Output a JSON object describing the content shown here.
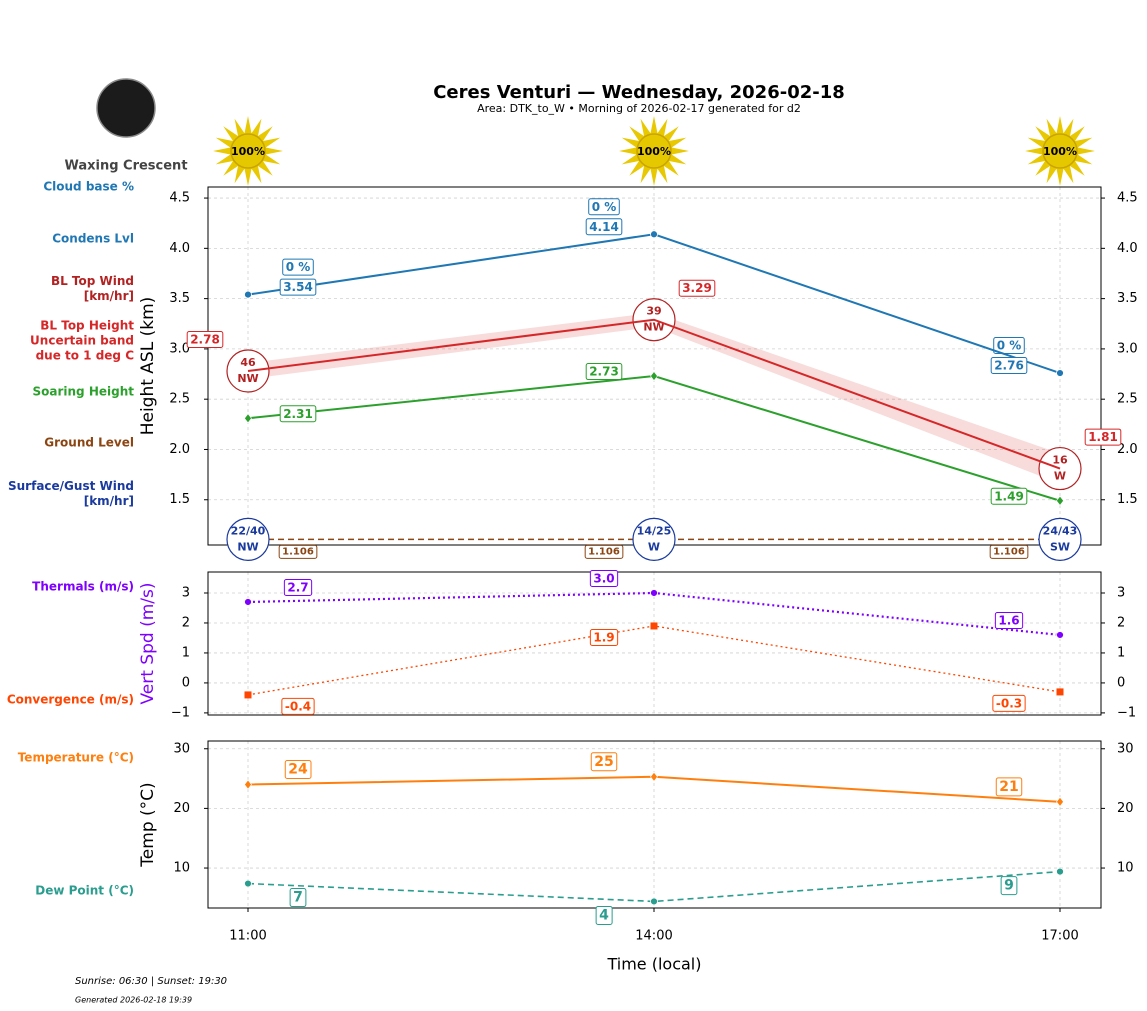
{
  "header": {
    "title": "Ceres Venturi — Wednesday, 2026-02-18",
    "subtitle": "Area: DTK_to_W • Morning of 2026-02-17 generated for d2",
    "moon_phase": "Waxing Crescent"
  },
  "sunshine": {
    "values": [
      100,
      100,
      100
    ],
    "value_labels": [
      "100%",
      "100%",
      "100%"
    ]
  },
  "footer": {
    "sun_times": "Sunrise: 06:30 | Sunset: 19:30",
    "generated": "Generated 2026-02-18 19:39"
  },
  "chart_data": [
    {
      "type": "line",
      "ylabel": "Height ASL (km)",
      "categories": [
        "11:00",
        "14:00",
        "17:00"
      ],
      "ylim": [
        1.05,
        4.61
      ],
      "yticks": [
        1.5,
        {
          "value": 2,
          "label": "2.0"
        },
        2.5,
        {
          "value": 3,
          "label": "3.0"
        },
        3.5,
        {
          "value": 4,
          "label": "4.0"
        },
        4.5
      ],
      "grid": true,
      "series": [
        {
          "name": "Cloud base %",
          "color": "#1f77b4",
          "values": [
            0,
            0,
            0
          ],
          "value_labels": [
            "0 %",
            "0 %",
            "0 %"
          ],
          "marker": "label"
        },
        {
          "name": "Condens Lvl",
          "color": "#1f77b4",
          "values": [
            3.54,
            4.14,
            2.76
          ],
          "marker": "circle",
          "dash": "solid",
          "linewidth": 2
        },
        {
          "name": "BL Top Wind\n[km/hr]",
          "color": "#b22222",
          "values": [
            46,
            39,
            16
          ],
          "directions": [
            "NW",
            "NW",
            "W"
          ],
          "marker": "wind"
        },
        {
          "name": "BL Top Height\nUncertain band\ndue to 1 deg C",
          "color": "#d62728",
          "values": [
            2.78,
            3.29,
            1.81
          ],
          "band": [
            0.08,
            0.07,
            0.15
          ],
          "marker": "none",
          "dash": "solid",
          "linewidth": 2
        },
        {
          "name": "Soaring Height",
          "color": "#2ca02c",
          "values": [
            2.31,
            2.73,
            1.49
          ],
          "marker": "diamond",
          "dash": "solid",
          "linewidth": 2
        },
        {
          "name": "Ground Level",
          "color": "#8b4513",
          "values": [
            1.106,
            1.106,
            1.106
          ],
          "marker": "none",
          "dash": "dashed",
          "linewidth": 1.5
        },
        {
          "name": "Surface/Gust Wind\n[km/hr]",
          "color": "#1a3a9e",
          "values": [
            22,
            14,
            24
          ],
          "gust": [
            40,
            25,
            43
          ],
          "value_labels": [
            "22/40",
            "14/25",
            "24/43"
          ],
          "directions": [
            "NW",
            "W",
            "SW"
          ],
          "marker": "wind"
        }
      ]
    },
    {
      "type": "line",
      "ylabel": "Vert Spd (m/s)",
      "ylabel_color": "#7f00ff",
      "categories": [
        "11:00",
        "14:00",
        "17:00"
      ],
      "ylim": [
        -1.07,
        3.7
      ],
      "yticks": [
        {
          "value": -1,
          "label": "−1"
        },
        0,
        1,
        2,
        3
      ],
      "grid": true,
      "series": [
        {
          "name": "Thermals (m/s)",
          "color": "#7f00ff",
          "values": [
            2.7,
            3,
            1.6
          ],
          "value_labels": [
            "2.7",
            "3.0",
            "1.6"
          ],
          "marker": "circle",
          "dash": "dotted",
          "linewidth": 2.2
        },
        {
          "name": "Convergence (m/s)",
          "color": "#ff4500",
          "values": [
            -0.4,
            1.9,
            -0.3
          ],
          "marker": "square",
          "dash": "dotted",
          "linewidth": 1.3
        }
      ]
    },
    {
      "type": "line",
      "ylabel": "Temp (°C)",
      "xlabel": "Time (local)",
      "categories": [
        "11:00",
        "14:00",
        "17:00"
      ],
      "ylim": [
        3.3,
        31.3
      ],
      "yticks": [
        10,
        20,
        30
      ],
      "grid": true,
      "series": [
        {
          "name": "Temperature (°C)",
          "color": "#ff7f0e",
          "values": [
            24,
            25.3,
            21.1
          ],
          "value_labels": [
            "24",
            "25",
            "21"
          ],
          "marker": "diamond",
          "dash": "solid",
          "linewidth": 2
        },
        {
          "name": "Dew Point (°C)",
          "color": "#2a9d8f",
          "values": [
            7.4,
            4.4,
            9.4
          ],
          "value_labels": [
            "7",
            "4",
            "9"
          ],
          "marker": "circle",
          "dash": "dashed",
          "linewidth": 1.6
        }
      ]
    }
  ]
}
